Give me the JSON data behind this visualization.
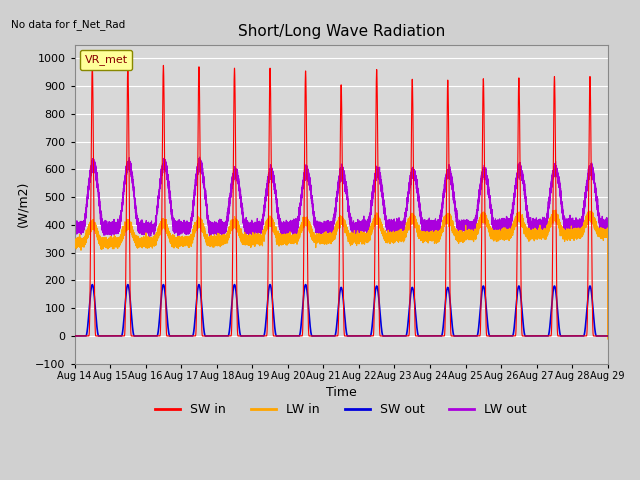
{
  "title": "Short/Long Wave Radiation",
  "xlabel": "Time",
  "ylabel": "(W/m2)",
  "ylim": [
    -100,
    1050
  ],
  "background_color": "#d8d8d8",
  "grid_color": "#ffffff",
  "fig_color": "#d0d0d0",
  "text_no_data": "No data for f_Net_Rad",
  "legend_label": "VR_met",
  "x_tick_labels": [
    "Aug 14",
    "Aug 15",
    "Aug 16",
    "Aug 17",
    "Aug 18",
    "Aug 19",
    "Aug 20",
    "Aug 21",
    "Aug 22",
    "Aug 23",
    "Aug 24",
    "Aug 25",
    "Aug 26",
    "Aug 27",
    "Aug 28",
    "Aug 29"
  ],
  "series": {
    "SW_in": {
      "color": "#ff0000",
      "label": "SW in"
    },
    "LW_in": {
      "color": "#ffa500",
      "label": "LW in"
    },
    "SW_out": {
      "color": "#0000dd",
      "label": "SW out"
    },
    "LW_out": {
      "color": "#aa00dd",
      "label": "LW out"
    }
  },
  "sw_in_peaks": [
    975,
    970,
    975,
    970,
    965,
    965,
    955,
    905,
    960,
    925,
    922,
    927,
    930,
    935,
    935
  ],
  "sw_out_peaks": [
    185,
    185,
    185,
    185,
    185,
    185,
    185,
    175,
    180,
    175,
    175,
    180,
    180,
    180,
    180
  ],
  "n_days": 15,
  "points_per_day": 1440
}
